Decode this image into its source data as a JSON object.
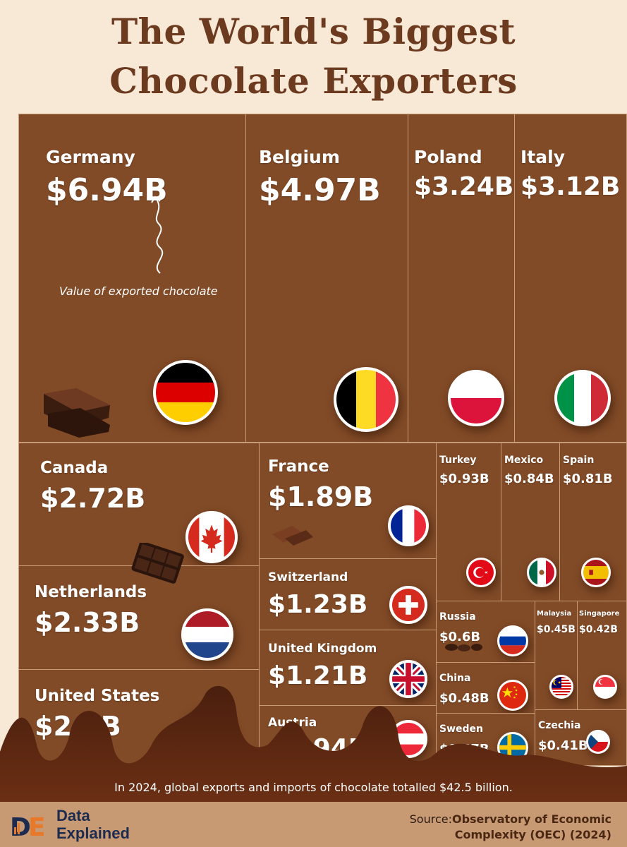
{
  "title": {
    "line1": "The World's Biggest",
    "line2": "Chocolate Exporters"
  },
  "annotation": "Value of exported chocolate",
  "footnote": "In 2024, global exports and imports of chocolate totalled $42.5 billion.",
  "footer": {
    "brand_line1": "Data",
    "brand_line2": "Explained",
    "source_label": "Source:",
    "source_line1": "Observatory of Economic",
    "source_line2": "Complexity (OEC) (2024)"
  },
  "colors": {
    "background": "#f8e8d6",
    "tile": "#824b27",
    "title": "#6b3a1f",
    "footer": "#c89a74"
  },
  "chart_data": {
    "type": "treemap",
    "unit": "USD billions",
    "series": [
      {
        "name": "Germany",
        "value": 6.94,
        "label": "$6.94B",
        "flag": "germany-flag-icon"
      },
      {
        "name": "Belgium",
        "value": 4.97,
        "label": "$4.97B",
        "flag": "belgium-flag-icon"
      },
      {
        "name": "Poland",
        "value": 3.24,
        "label": "$3.24B",
        "flag": "poland-flag-icon"
      },
      {
        "name": "Italy",
        "value": 3.12,
        "label": "$3.12B",
        "flag": "italy-flag-icon"
      },
      {
        "name": "Canada",
        "value": 2.72,
        "label": "$2.72B",
        "flag": "canada-flag-icon"
      },
      {
        "name": "Netherlands",
        "value": 2.33,
        "label": "$2.33B",
        "flag": "netherlands-flag-icon"
      },
      {
        "name": "United States",
        "value": 2.1,
        "label": "$2.1B",
        "flag": "usa-flag-icon"
      },
      {
        "name": "France",
        "value": 1.89,
        "label": "$1.89B",
        "flag": "france-flag-icon"
      },
      {
        "name": "Switzerland",
        "value": 1.23,
        "label": "$1.23B",
        "flag": "switzerland-flag-icon"
      },
      {
        "name": "United Kingdom",
        "value": 1.21,
        "label": "$1.21B",
        "flag": "uk-flag-icon"
      },
      {
        "name": "Austria",
        "value": 0.94,
        "label": "$0.94B",
        "flag": "austria-flag-icon"
      },
      {
        "name": "Turkey",
        "value": 0.93,
        "label": "$0.93B",
        "flag": "turkey-flag-icon"
      },
      {
        "name": "Mexico",
        "value": 0.84,
        "label": "$0.84B",
        "flag": "mexico-flag-icon"
      },
      {
        "name": "Spain",
        "value": 0.81,
        "label": "$0.81B",
        "flag": "spain-flag-icon"
      },
      {
        "name": "Russia",
        "value": 0.6,
        "label": "$0.6B",
        "flag": "russia-flag-icon"
      },
      {
        "name": "China",
        "value": 0.48,
        "label": "$0.48B",
        "flag": "china-flag-icon"
      },
      {
        "name": "Sweden",
        "value": 0.47,
        "label": "$0.47B",
        "flag": "sweden-flag-icon"
      },
      {
        "name": "Malaysia",
        "value": 0.45,
        "label": "$0.45B",
        "flag": "malaysia-flag-icon"
      },
      {
        "name": "Singapore",
        "value": 0.42,
        "label": "$0.42B",
        "flag": "singapore-flag-icon"
      },
      {
        "name": "Czechia",
        "value": 0.41,
        "label": "$0.41B",
        "flag": "czechia-flag-icon"
      }
    ]
  }
}
